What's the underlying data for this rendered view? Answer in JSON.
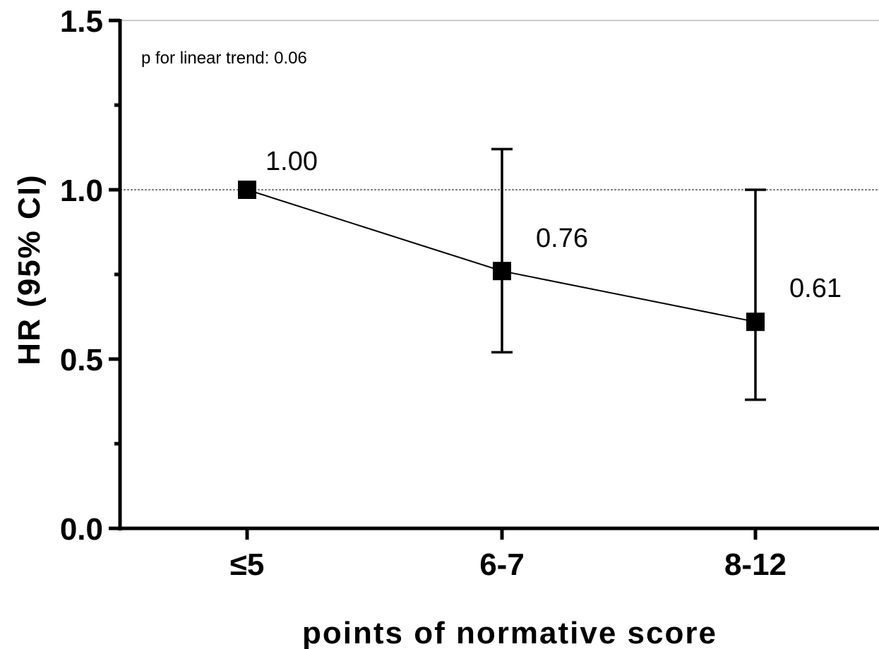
{
  "chart_data": {
    "type": "line",
    "categories": [
      "≤5",
      "6-7",
      "8-12"
    ],
    "series": [
      {
        "values": [
          1.0,
          0.76,
          0.61
        ],
        "ci_lower": [
          null,
          0.52,
          0.38
        ],
        "ci_upper": [
          null,
          1.12,
          1.0
        ],
        "labels": [
          "1.00",
          "0.76",
          "0.61"
        ],
        "marker": "square",
        "color": "#000000"
      }
    ],
    "xlabel": "points of normative score",
    "ylabel": "HR (95% CI)",
    "ylim": [
      0,
      1.5
    ],
    "y_ticks": [
      0.0,
      0.5,
      1.0,
      1.5
    ],
    "y_tick_labels": [
      "0.0",
      "0.5",
      "1.0",
      "1.5"
    ],
    "y_minor_ticks": [
      0.25,
      0.75,
      1.25
    ],
    "reference_line": 1.0,
    "annotation": "p for linear trend: 0.06",
    "grid": false,
    "legend": "none"
  }
}
